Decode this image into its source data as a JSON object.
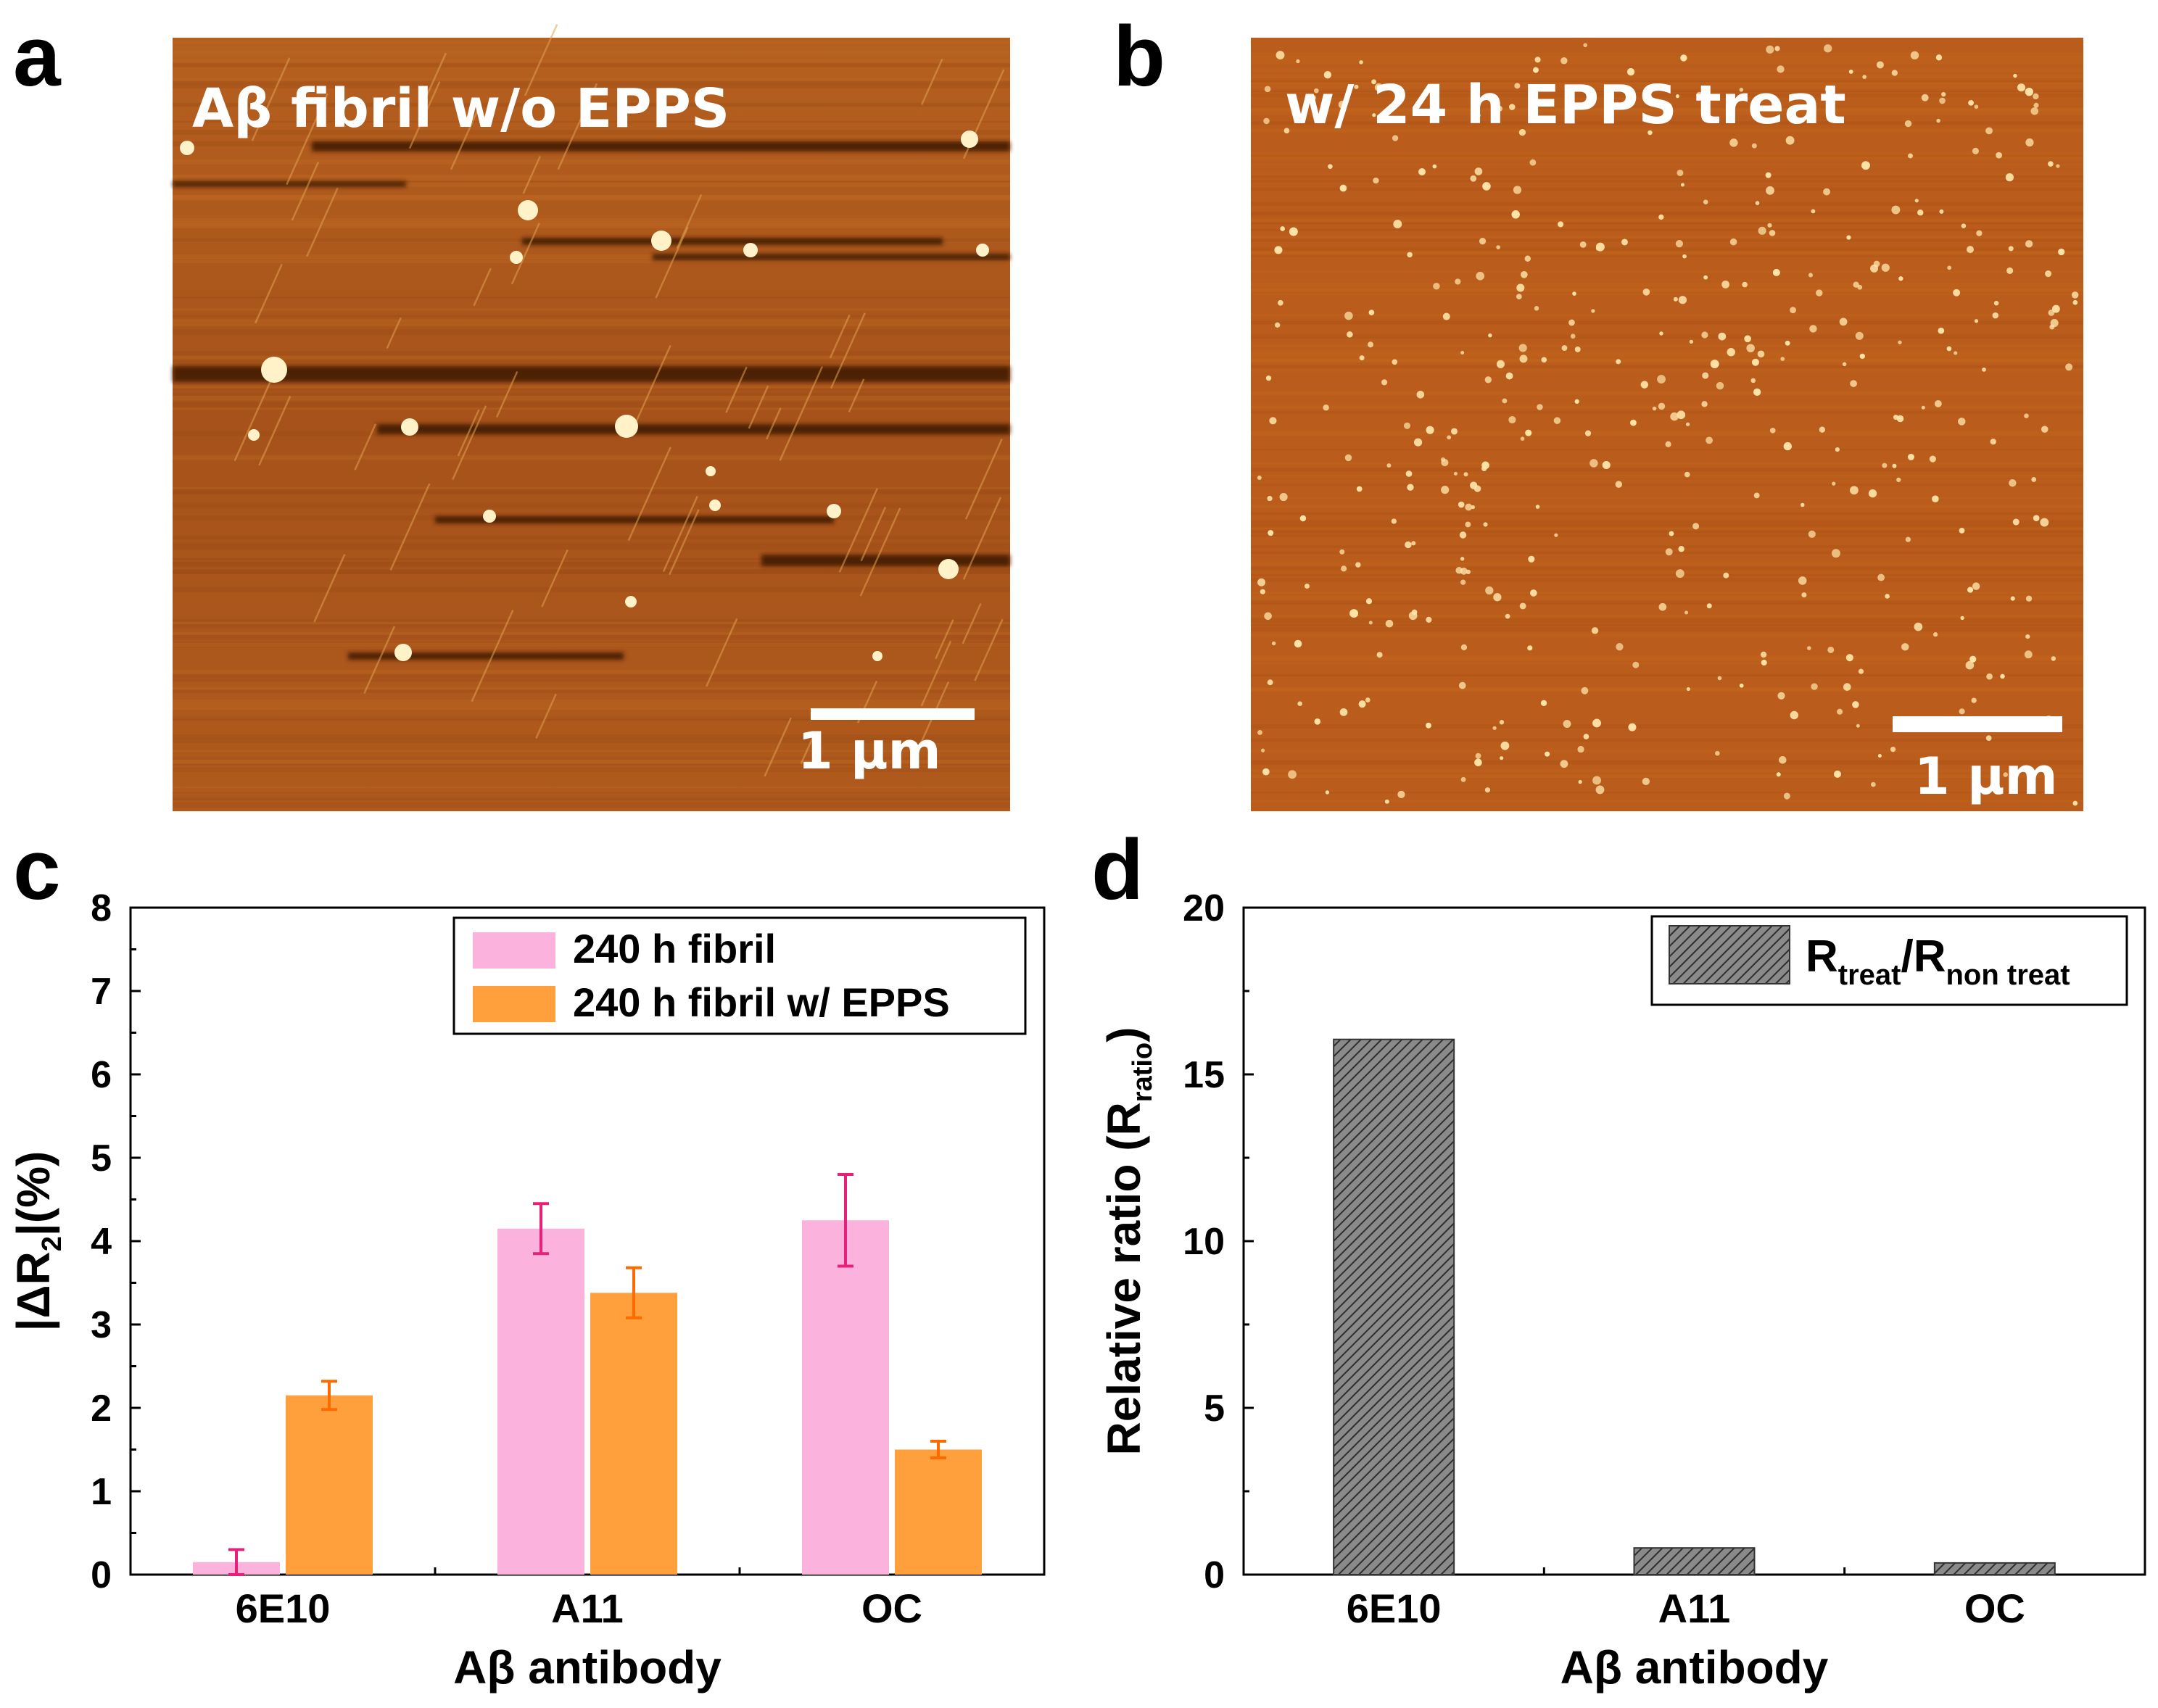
{
  "panels": {
    "a": {
      "letter": "a",
      "caption": "Aβ fibril w/o EPPS",
      "scale_bar_label": "1 μm",
      "colors": {
        "bg": "#a8541c",
        "mid": "#b86224",
        "dark": "#3c1402",
        "bright": "#fff1c8"
      }
    },
    "b": {
      "letter": "b",
      "caption": "w/ 24 h EPPS treat",
      "scale_bar_label": "1 μm",
      "colors": {
        "bg": "#b85c1c",
        "mid": "#c0661f",
        "bright": "#ffe4a8"
      }
    }
  },
  "chart_data": [
    {
      "panel": "c",
      "type": "bar",
      "categories": [
        "6E10",
        "A11",
        "OC"
      ],
      "series": [
        {
          "name": "240 h fibril",
          "values": [
            0.15,
            4.15,
            4.25
          ],
          "errors": [
            0.15,
            0.3,
            0.55
          ],
          "color": "#fbb2dc",
          "error_color": "#e8207a"
        },
        {
          "name": "240 h fibril w/ EPPS",
          "values": [
            2.15,
            3.38,
            1.5
          ],
          "errors": [
            0.17,
            0.3,
            0.1
          ],
          "color": "#ffa03c",
          "error_color": "#ff6a00"
        }
      ],
      "xlabel": "Aβ antibody",
      "ylabel": "|ΔR2|(%)",
      "ylabel_parts": {
        "pre": "|ΔR",
        "sub": "2",
        "post": "|(%)"
      },
      "ylim": [
        0,
        8
      ],
      "yticks": [
        "0",
        "1",
        "2",
        "3",
        "4",
        "5",
        "6",
        "7",
        "8"
      ],
      "legend_position": "top-right"
    },
    {
      "panel": "d",
      "type": "bar",
      "categories": [
        "6E10",
        "A11",
        "OC"
      ],
      "series": [
        {
          "name": "Rtreat/Rnon treat",
          "values": [
            16.05,
            0.8,
            0.35
          ],
          "color": "#808080",
          "pattern": "diagonal-hatch"
        }
      ],
      "legend_parts": {
        "r1": "R",
        "sub1": "treat",
        "slash": "/R",
        "sub2": "non treat"
      },
      "xlabel": "Aβ antibody",
      "ylabel": "Relative ratio (Rratio)",
      "ylabel_parts": {
        "pre": "Relative ratio (R",
        "sub": "ratio",
        "post": ")"
      },
      "ylim": [
        0,
        20
      ],
      "yticks": [
        "0",
        "5",
        "10",
        "15",
        "20"
      ],
      "legend_position": "top-right"
    }
  ]
}
